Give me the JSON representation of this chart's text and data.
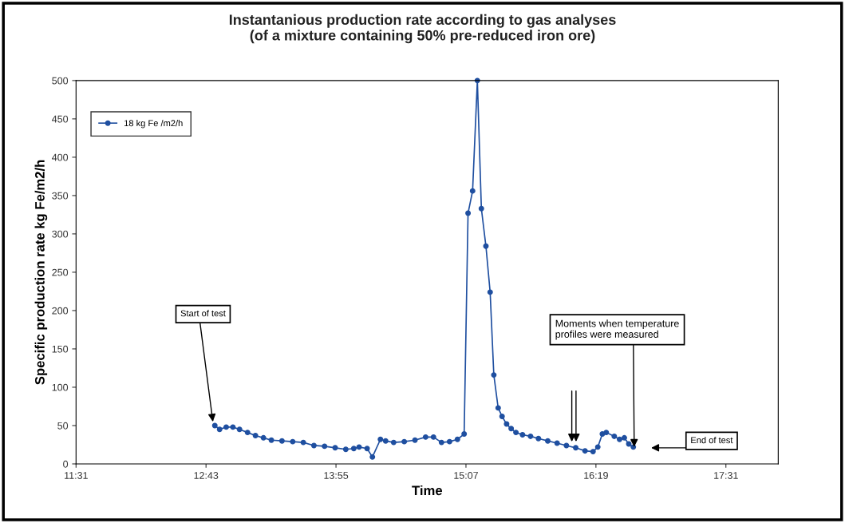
{
  "chart_data": {
    "type": "line",
    "title": "Instantanious production rate according to gas analyses\n(of a mixture containing 50% pre-reduced iron ore)",
    "xlabel": "Time",
    "ylabel": "Specific production rate kg Fe/m2/h",
    "series": [
      {
        "name": "18 kg Fe /m2/h",
        "color": "#1f4fa0",
        "x": [
          12.798,
          12.842,
          12.903,
          12.965,
          13.026,
          13.1,
          13.173,
          13.247,
          13.32,
          13.418,
          13.517,
          13.615,
          13.713,
          13.811,
          13.909,
          14.007,
          14.081,
          14.13,
          14.204,
          14.253,
          14.327,
          14.375,
          14.449,
          14.547,
          14.646,
          14.744,
          14.817,
          14.891,
          14.965,
          15.038,
          15.1,
          15.136,
          15.178,
          15.222,
          15.259,
          15.301,
          15.34,
          15.374,
          15.414,
          15.45,
          15.492,
          15.534,
          15.578,
          15.639,
          15.713,
          15.786,
          15.872,
          15.958,
          16.044,
          16.13,
          16.216,
          16.29,
          16.334,
          16.376,
          16.412,
          16.486,
          16.535,
          16.579,
          16.62,
          16.662
        ],
        "values": [
          50,
          45,
          48,
          48,
          45,
          41,
          37,
          34,
          31,
          30,
          29,
          28,
          24,
          23,
          21,
          19,
          20,
          22,
          20,
          9,
          32,
          30,
          28,
          29,
          31,
          35,
          35,
          28,
          29,
          32,
          39,
          327,
          356,
          500,
          333,
          284,
          224,
          116,
          73,
          62,
          52,
          46,
          41,
          38,
          36,
          33,
          30,
          27,
          24,
          21,
          17,
          16,
          22,
          39,
          41,
          36,
          32,
          34,
          26,
          22
        ]
      }
    ],
    "xlim": [
      11.5167,
      18.0
    ],
    "xticks": [
      {
        "value": 11.5167,
        "label": "11:31"
      },
      {
        "value": 12.7167,
        "label": "12:43"
      },
      {
        "value": 13.9167,
        "label": "13:55"
      },
      {
        "value": 15.1167,
        "label": "15:07"
      },
      {
        "value": 16.3167,
        "label": "16:19"
      },
      {
        "value": 17.5167,
        "label": "17:31"
      }
    ],
    "ylim": [
      0,
      500
    ],
    "yticks": [
      0,
      50,
      100,
      150,
      200,
      250,
      300,
      350,
      400,
      450,
      500
    ],
    "grid": false,
    "legend": "top left",
    "marker": "circle",
    "line_style": "solid",
    "annotations": [
      {
        "text": "Start of test",
        "x": 12.78,
        "y": 55
      },
      {
        "text": "Moments when temperature\nprofiles were measured",
        "x": 16.67,
        "y": 22
      },
      "End of test"
    ]
  }
}
